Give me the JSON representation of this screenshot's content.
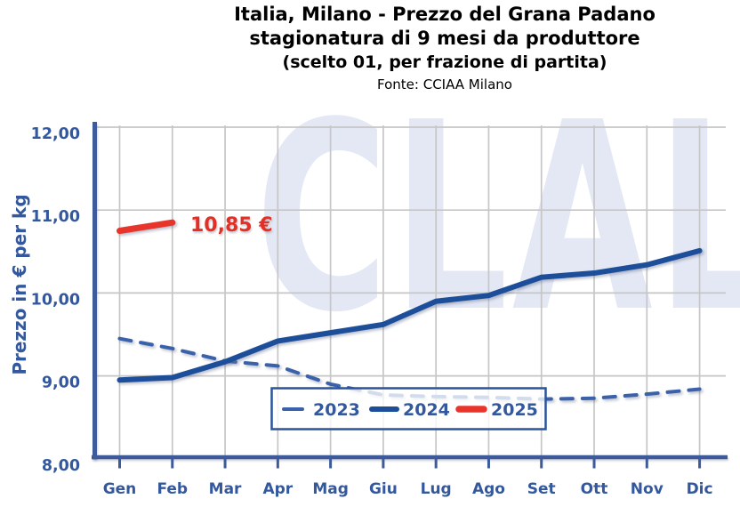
{
  "header": {
    "title_line1": "Italia, Milano - Prezzo del Grana Padano",
    "title_line2": "stagionatura di 9 mesi da produttore",
    "title_line3": "(scelto 01, per frazione di partita)",
    "source": "Fonte: CCIAA Milano"
  },
  "watermark": {
    "text": "CLAL"
  },
  "chart_data": {
    "type": "line",
    "title": "Italia, Milano - Prezzo del Grana Padano stagionatura di 9 mesi da produttore (scelto 01, per frazione di partita)",
    "source": "Fonte: CCIAA Milano",
    "xlabel": "",
    "ylabel": "Prezzo in € per kg",
    "ylim": [
      8.0,
      12.0
    ],
    "yticks": [
      8,
      9,
      10,
      11,
      12
    ],
    "ytick_labels": [
      "8,00",
      "9,00",
      "10,00",
      "11,00",
      "12,00"
    ],
    "categories": [
      "Gen",
      "Feb",
      "Mar",
      "Apr",
      "Mag",
      "Giu",
      "Lug",
      "Ago",
      "Set",
      "Ott",
      "Nov",
      "Dic"
    ],
    "grid": true,
    "legend_position": "inside-bottom-center",
    "series": [
      {
        "name": "2023",
        "style": "dashed",
        "color": "#3a62aa",
        "values": [
          9.45,
          9.33,
          9.18,
          9.12,
          8.9,
          8.77,
          8.75,
          8.74,
          8.72,
          8.73,
          8.78,
          8.84
        ]
      },
      {
        "name": "2024",
        "style": "solid",
        "color": "#1d4e9a",
        "values": [
          8.95,
          8.98,
          9.17,
          9.42,
          9.52,
          9.62,
          9.9,
          9.97,
          10.19,
          10.24,
          10.34,
          10.51
        ]
      },
      {
        "name": "2025",
        "style": "solid",
        "color": "#e8352b",
        "values": [
          10.75,
          10.85
        ]
      }
    ],
    "annotation": {
      "text": "10,85 €",
      "series": "2025",
      "value": 10.85,
      "color": "#e42f26"
    }
  },
  "colors": {
    "label_blue": "#33589e",
    "axis_blue": "#3d5a9a",
    "grid_gray": "#c6c6c6",
    "legend_border": "#2a549c",
    "watermark": "#e4e8f5",
    "title_black": "#000000"
  }
}
